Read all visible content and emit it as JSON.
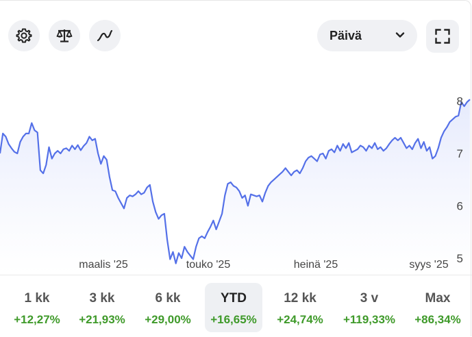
{
  "toolbar": {
    "settings_icon": "gear-icon",
    "compare_icon": "scale-balance-icon",
    "chart_type_icon": "line-chart-icon",
    "period_label": "Päivä",
    "fullscreen_icon": "fullscreen-icon"
  },
  "colors": {
    "line": "#5470e8",
    "area": "#eef1fd",
    "positive": "#3f9a2a",
    "button_bg": "#f0f1f4"
  },
  "chart_data": {
    "type": "area",
    "title": "",
    "xlabel": "",
    "ylabel": "",
    "x_tick_labels": [
      "maalis '25",
      "touko '25",
      "heinä '25",
      "syys '25"
    ],
    "y_tick_labels": [
      "5",
      "6",
      "7",
      "8"
    ],
    "ylim": [
      4.8,
      8.1
    ],
    "grid": false,
    "series": [
      {
        "values": [
          7.0,
          7.38,
          7.32,
          7.18,
          7.1,
          7.03,
          7.0,
          7.22,
          7.32,
          7.38,
          7.38,
          7.58,
          7.44,
          7.4,
          6.68,
          6.62,
          6.78,
          7.12,
          6.9,
          7.0,
          7.05,
          7.0,
          7.08,
          7.1,
          7.05,
          7.15,
          7.08,
          7.16,
          7.06,
          7.14,
          7.2,
          7.32,
          7.25,
          7.28,
          7.0,
          6.8,
          6.95,
          6.88,
          6.55,
          6.3,
          6.28,
          6.15,
          6.05,
          5.95,
          6.15,
          6.2,
          6.18,
          6.22,
          6.28,
          6.22,
          6.25,
          6.35,
          6.4,
          6.08,
          5.88,
          5.75,
          5.82,
          5.85,
          5.35,
          4.98,
          5.12,
          4.9,
          5.1,
          5.0,
          5.22,
          5.12,
          5.05,
          4.98,
          5.22,
          5.38,
          5.42,
          5.38,
          5.5,
          5.6,
          5.72,
          5.55,
          5.7,
          5.85,
          6.2,
          6.42,
          6.45,
          6.38,
          6.35,
          6.28,
          6.15,
          6.2,
          6.0,
          6.22,
          6.2,
          6.18,
          6.2,
          6.08,
          6.25,
          6.38,
          6.45,
          6.5,
          6.55,
          6.6,
          6.65,
          6.72,
          6.65,
          6.58,
          6.65,
          6.68,
          6.62,
          6.72,
          6.85,
          6.92,
          6.95,
          6.9,
          6.85,
          6.98,
          7.0,
          6.9,
          7.05,
          7.08,
          7.02,
          7.15,
          7.05,
          7.18,
          7.1,
          7.2,
          7.02,
          7.05,
          7.08,
          7.15,
          7.12,
          7.05,
          7.15,
          7.1,
          7.2,
          7.08,
          7.12,
          7.05,
          7.1,
          7.18,
          7.25,
          7.3,
          7.25,
          7.3,
          7.2,
          7.1,
          7.15,
          7.08,
          7.2,
          7.28,
          7.1,
          7.22,
          7.05,
          7.12,
          6.9,
          6.95,
          7.1,
          7.3,
          7.42,
          7.5,
          7.6,
          7.65,
          7.7,
          7.72,
          7.98,
          7.9,
          7.98,
          8.03
        ]
      }
    ]
  },
  "ranges": [
    {
      "label": "1 kk",
      "change": "+12,27%"
    },
    {
      "label": "3 kk",
      "change": "+21,93%"
    },
    {
      "label": "6 kk",
      "change": "+29,00%"
    },
    {
      "label": "YTD",
      "change": "+16,65%"
    },
    {
      "label": "12 kk",
      "change": "+24,74%"
    },
    {
      "label": "3 v",
      "change": "+119,33%"
    },
    {
      "label": "Max",
      "change": "+86,34%"
    }
  ]
}
